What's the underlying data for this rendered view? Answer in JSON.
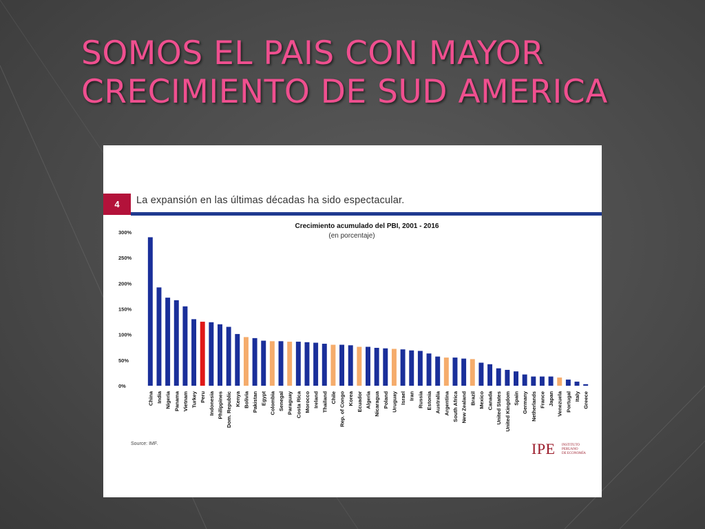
{
  "slide": {
    "title_line1": "SOMOS EL PAIS CON MAYOR",
    "title_line2": "CRECIMIENTO DE SUD AMERICA"
  },
  "figure": {
    "slide_number": "4",
    "subtitle": "La expansión en las últimas décadas ha sido espectacular.",
    "source": "Source: IMF.",
    "logo": {
      "mark": "IPE",
      "line1": "INSTITUTO",
      "line2": "PERUANO",
      "line3": "DE ECONOMÍA"
    }
  },
  "colors": {
    "title": "#ef4f8f",
    "bar_default": "#1a2f9a",
    "bar_highlight": "#e01818",
    "bar_latam": "#f5ac6c",
    "accent_rule": "#1f3a8f",
    "number_box": "#b3123a"
  },
  "chart_data": {
    "type": "bar",
    "title": "Crecimiento acumulado del PBI, 2001 - 2016",
    "subtitle": "(en porcentaje)",
    "xlabel": "",
    "ylabel": "",
    "ylim": [
      0,
      300
    ],
    "yticks": [
      0,
      50,
      100,
      150,
      200,
      250,
      300
    ],
    "ytick_labels": [
      "0%",
      "50%",
      "100%",
      "150%",
      "200%",
      "250%",
      "300%"
    ],
    "grid": false,
    "legend": "none",
    "categories": [
      "China",
      "India",
      "Nigeria",
      "Panama",
      "Vietnam",
      "Turkey",
      "Peru",
      "Indonesia",
      "Philippines",
      "Dom. Republic",
      "Kenya",
      "Bolivia",
      "Pakistan",
      "Egypt",
      "Colombia",
      "Senegal",
      "Paraguay",
      "Costa Rica",
      "Morocco",
      "Ireland",
      "Thailand",
      "Chile",
      "Rep. of Congo",
      "Korea",
      "Ecuador",
      "Algeria",
      "Nicaragua",
      "Poland",
      "Uruguay",
      "Israel",
      "Iran",
      "Russia",
      "Estonia",
      "Australia",
      "Argentina",
      "South Africa",
      "New Zealand",
      "Brazil",
      "Mexico",
      "Canada",
      "United States",
      "United Kingdom",
      "Spain",
      "Germany",
      "Netherlands",
      "France",
      "Japan",
      "Venezuela",
      "Portugal",
      "Italy",
      "Greece"
    ],
    "values": [
      290,
      192,
      172,
      167,
      155,
      130,
      125,
      124,
      120,
      115,
      101,
      95,
      93,
      88,
      87,
      87,
      86,
      86,
      85,
      84,
      82,
      80,
      80,
      79,
      76,
      76,
      74,
      73,
      72,
      71,
      69,
      68,
      63,
      57,
      55,
      55,
      53,
      52,
      45,
      42,
      34,
      31,
      28,
      22,
      18,
      18,
      18,
      16,
      12,
      8,
      3
    ],
    "groups": [
      "other",
      "other",
      "other",
      "other",
      "other",
      "other",
      "peru",
      "other",
      "other",
      "other",
      "other",
      "latam",
      "other",
      "other",
      "latam",
      "other",
      "latam",
      "other",
      "other",
      "other",
      "other",
      "latam",
      "other",
      "other",
      "latam",
      "other",
      "other",
      "other",
      "latam",
      "other",
      "other",
      "other",
      "other",
      "other",
      "latam",
      "other",
      "other",
      "latam",
      "other",
      "other",
      "other",
      "other",
      "other",
      "other",
      "other",
      "other",
      "other",
      "latam",
      "other",
      "other",
      "other"
    ]
  }
}
